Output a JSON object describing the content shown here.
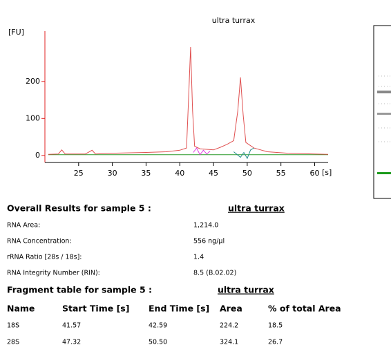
{
  "chart_data": {
    "type": "line",
    "title": "ultra turrax",
    "y_label": "[FU]",
    "x_label": "[s]",
    "xlim": [
      20,
      62
    ],
    "ylim": [
      -19,
      336
    ],
    "xticks": [
      25,
      30,
      35,
      40,
      45,
      50,
      55,
      60
    ],
    "yticks": [
      0,
      100,
      200
    ],
    "axis_color": "#e02020",
    "series": [
      {
        "color": "#2a9a2a",
        "x": [
          20.5,
          62
        ],
        "values": [
          2,
          2
        ]
      },
      {
        "color": "#e05050",
        "x": [
          20.5,
          22,
          22.5,
          23,
          26,
          27,
          27.5,
          30,
          35,
          38,
          40,
          41,
          41.3,
          41.6,
          41.9,
          42.2,
          43,
          45,
          46,
          47,
          48,
          48.6,
          49,
          49.4,
          49.8,
          51,
          53,
          56,
          60,
          62
        ],
        "values": [
          3,
          4,
          15,
          4,
          4,
          14,
          4,
          6,
          8,
          10,
          14,
          20,
          150,
          293,
          120,
          25,
          18,
          15,
          22,
          30,
          40,
          120,
          211,
          110,
          35,
          20,
          10,
          6,
          4,
          3
        ]
      },
      {
        "color": "#e040e0",
        "x": [
          42,
          42.5,
          43,
          43.5,
          44,
          44.5
        ],
        "values": [
          8,
          20,
          2,
          14,
          4,
          12
        ]
      },
      {
        "color": "#208a8a",
        "x": [
          48,
          49,
          49.5,
          50,
          50.5,
          51
        ],
        "values": [
          10,
          -5,
          8,
          -8,
          15,
          20
        ]
      }
    ]
  },
  "overall": {
    "title": "Overall Results for sample 5 :",
    "sample": "ultra turrax",
    "rows": [
      [
        "RNA Area:",
        "1,214.0"
      ],
      [
        "RNA Concentration:",
        "556 ng/µl"
      ],
      [
        "rRNA Ratio [28s / 18s]:",
        "1.4"
      ],
      [
        "RNA Integrity Number (RIN):",
        "8.5   (B.02.02)"
      ]
    ]
  },
  "fragment_table": {
    "title": "Fragment table for sample 5 :",
    "sample": "ultra turrax",
    "header": [
      "Name",
      "Start Time [s]",
      "End Time [s]",
      "Area",
      "% of total Area"
    ],
    "rows": [
      [
        "18S",
        "41.57",
        "42.59",
        "224.2",
        "18.5"
      ],
      [
        "28S",
        "47.32",
        "50.50",
        "324.1",
        "26.7"
      ]
    ]
  }
}
